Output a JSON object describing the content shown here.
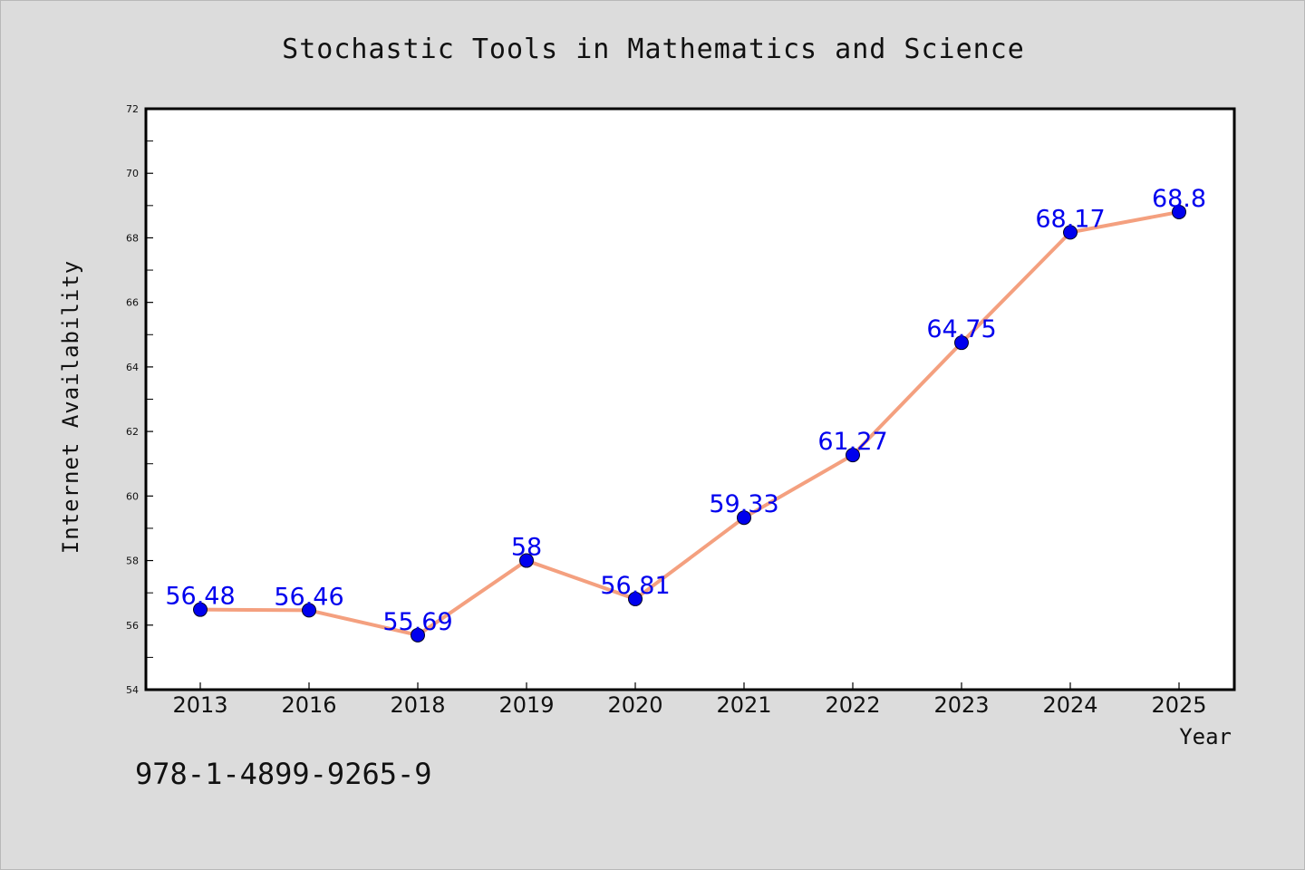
{
  "chart_data": {
    "type": "line",
    "title": "Stochastic Tools in Mathematics and Science",
    "xlabel": "Year",
    "ylabel": "Internet Availability",
    "categories": [
      "2013",
      "2016",
      "2018",
      "2019",
      "2020",
      "2021",
      "2022",
      "2023",
      "2024",
      "2025"
    ],
    "values": [
      56.48,
      56.46,
      55.69,
      58,
      56.81,
      59.33,
      61.27,
      64.75,
      68.17,
      68.8
    ],
    "data_labels": [
      "56.48",
      "56.46",
      "55.69",
      "58",
      "56.81",
      "59.33",
      "61.27",
      "64.75",
      "68.17",
      "68.8"
    ],
    "ylim": [
      54,
      72
    ],
    "yticks": [
      "54",
      "56",
      "58",
      "60",
      "62",
      "64",
      "66",
      "68",
      "70",
      "72"
    ],
    "grid": false,
    "legend": "none",
    "line_color": "#f4a07f",
    "marker_color": "#0000ee",
    "label_color": "#0000ee"
  },
  "footer": {
    "isbn": "978-1-4899-9265-9"
  }
}
